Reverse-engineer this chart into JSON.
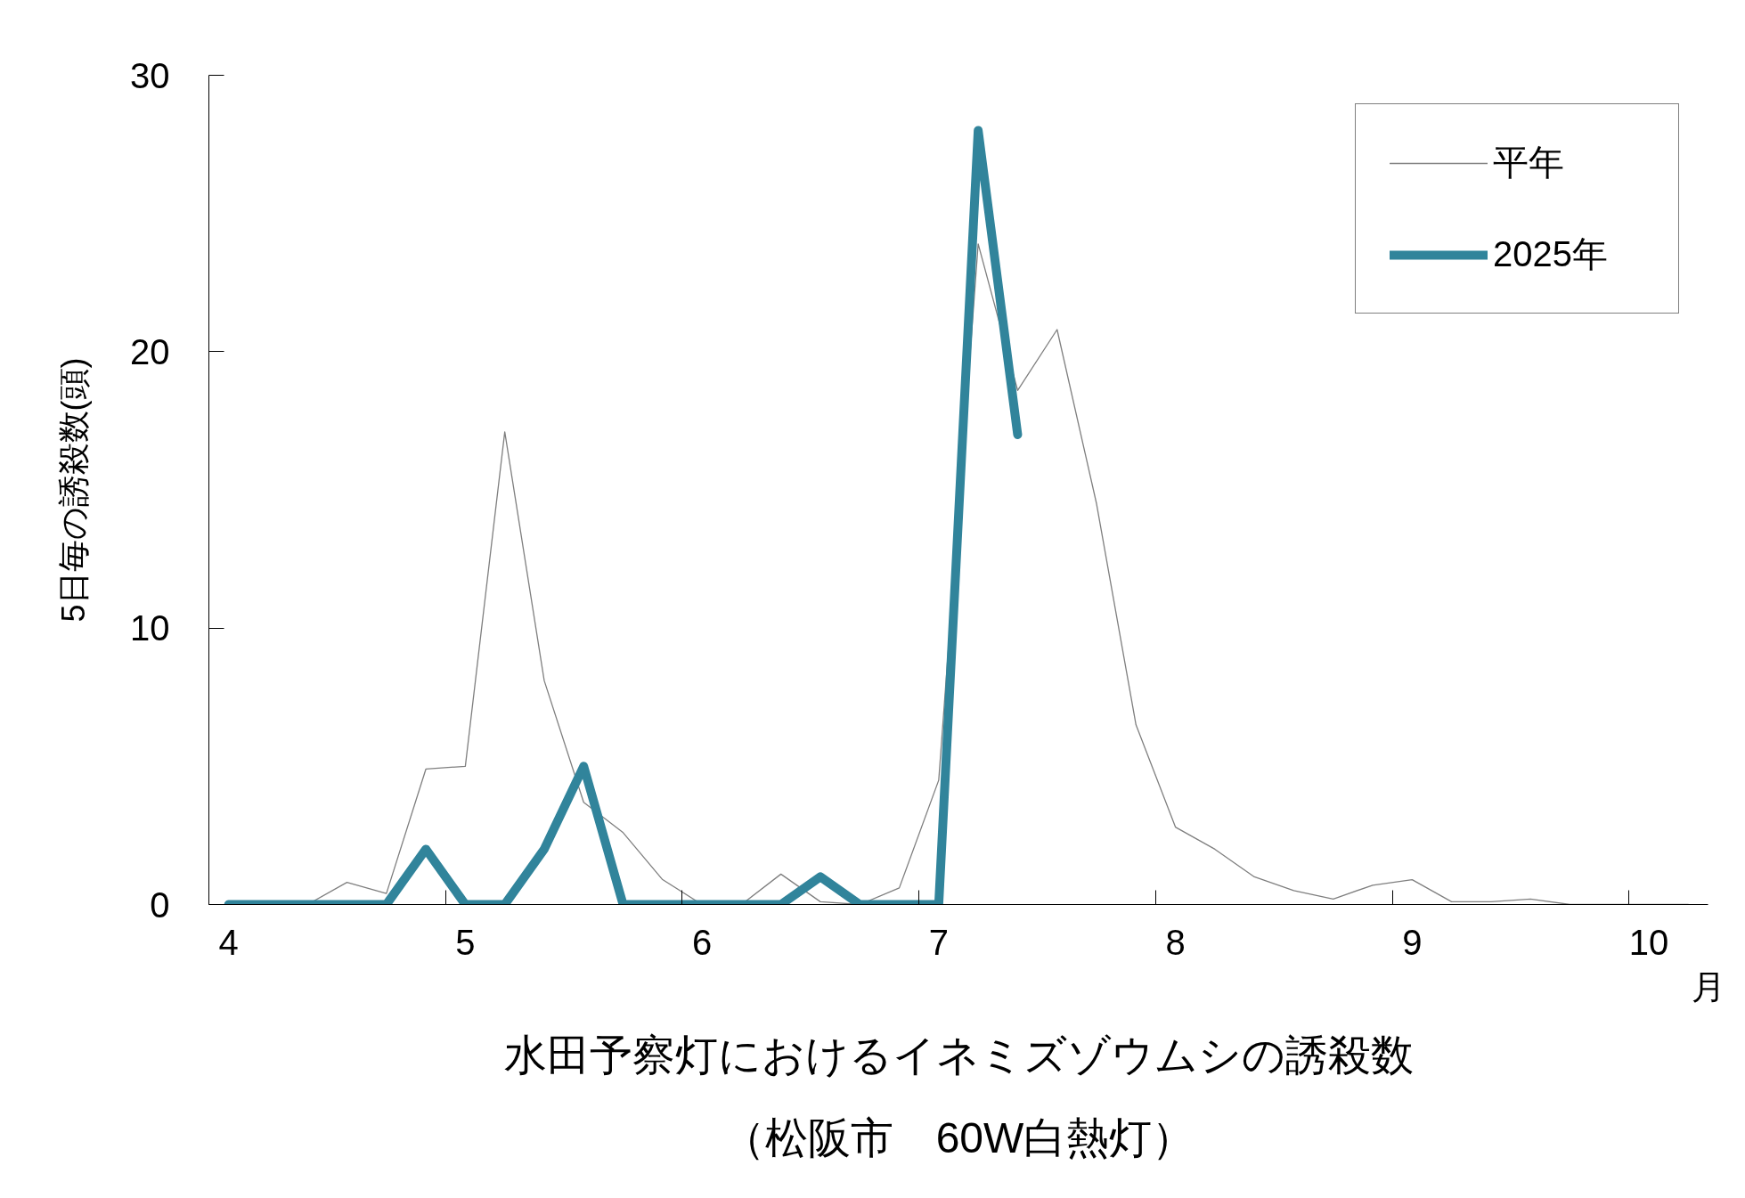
{
  "chart_data": {
    "type": "line",
    "title": "水田予察灯におけるイネミズゾウムシの誘殺数",
    "subtitle": "（松阪市　60W白熱灯）",
    "xlabel": "月",
    "ylabel": "5日毎の誘殺数(頭)",
    "categories": [
      "4",
      null,
      null,
      null,
      null,
      null,
      "5",
      null,
      null,
      null,
      null,
      null,
      "6",
      null,
      null,
      null,
      null,
      null,
      "7",
      null,
      null,
      null,
      null,
      null,
      "8",
      null,
      null,
      null,
      null,
      null,
      "9",
      null,
      null,
      null,
      null,
      null,
      "10",
      null
    ],
    "series": [
      {
        "name": "平年",
        "color": "#7f7f7f",
        "values": [
          0,
          0,
          0,
          0.8,
          0.4,
          4.9,
          5.0,
          17.1,
          8.1,
          3.7,
          2.6,
          0.9,
          0,
          0,
          1.1,
          0.1,
          0,
          0.6,
          4.5,
          23.9,
          18.6,
          20.8,
          14.5,
          6.5,
          2.8,
          2.0,
          1.0,
          0.5,
          0.2,
          0.7,
          0.9,
          0.1,
          0.1,
          0.2,
          0,
          0,
          0,
          0
        ]
      },
      {
        "name": "2025年",
        "color": "#31849b",
        "values": [
          0,
          0,
          0,
          0,
          0,
          2,
          0,
          0,
          2,
          5,
          0,
          0,
          0,
          0,
          0,
          1,
          0,
          0,
          0,
          28,
          17,
          null,
          null,
          null,
          null,
          null,
          null,
          null,
          null,
          null,
          null,
          null,
          null,
          null,
          null,
          null,
          null,
          null
        ]
      }
    ],
    "ylim": [
      0,
      30
    ],
    "yticks": [
      0,
      10,
      20,
      30
    ],
    "grid": false,
    "legend": "top right"
  }
}
